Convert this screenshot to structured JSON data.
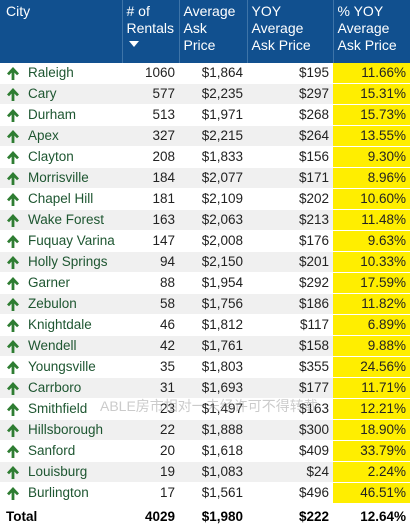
{
  "headers": {
    "city": "City",
    "rentals": "# of Rentals",
    "avg_ask": "Average Ask Price",
    "yoy_avg_ask": "YOY Average Ask Price",
    "pct_yoy": "% YOY Average Ask Price"
  },
  "rows": [
    {
      "city": "Raleigh",
      "rentals": "1060",
      "avg_ask": "$1,864",
      "yoy": "$195",
      "pct": "11.66%"
    },
    {
      "city": "Cary",
      "rentals": "577",
      "avg_ask": "$2,235",
      "yoy": "$297",
      "pct": "15.31%"
    },
    {
      "city": "Durham",
      "rentals": "513",
      "avg_ask": "$1,971",
      "yoy": "$268",
      "pct": "15.73%"
    },
    {
      "city": "Apex",
      "rentals": "327",
      "avg_ask": "$2,215",
      "yoy": "$264",
      "pct": "13.55%"
    },
    {
      "city": "Clayton",
      "rentals": "208",
      "avg_ask": "$1,833",
      "yoy": "$156",
      "pct": "9.30%"
    },
    {
      "city": "Morrisville",
      "rentals": "184",
      "avg_ask": "$2,077",
      "yoy": "$171",
      "pct": "8.96%"
    },
    {
      "city": "Chapel Hill",
      "rentals": "181",
      "avg_ask": "$2,109",
      "yoy": "$202",
      "pct": "10.60%"
    },
    {
      "city": "Wake Forest",
      "rentals": "163",
      "avg_ask": "$2,063",
      "yoy": "$213",
      "pct": "11.48%"
    },
    {
      "city": "Fuquay Varina",
      "rentals": "147",
      "avg_ask": "$2,008",
      "yoy": "$176",
      "pct": "9.63%"
    },
    {
      "city": "Holly Springs",
      "rentals": "94",
      "avg_ask": "$2,150",
      "yoy": "$201",
      "pct": "10.33%"
    },
    {
      "city": "Garner",
      "rentals": "88",
      "avg_ask": "$1,954",
      "yoy": "$292",
      "pct": "17.59%"
    },
    {
      "city": "Zebulon",
      "rentals": "58",
      "avg_ask": "$1,756",
      "yoy": "$186",
      "pct": "11.82%"
    },
    {
      "city": "Knightdale",
      "rentals": "46",
      "avg_ask": "$1,812",
      "yoy": "$117",
      "pct": "6.89%"
    },
    {
      "city": "Wendell",
      "rentals": "42",
      "avg_ask": "$1,761",
      "yoy": "$158",
      "pct": "9.88%"
    },
    {
      "city": "Youngsville",
      "rentals": "35",
      "avg_ask": "$1,803",
      "yoy": "$355",
      "pct": "24.56%"
    },
    {
      "city": "Carrboro",
      "rentals": "31",
      "avg_ask": "$1,693",
      "yoy": "$177",
      "pct": "11.71%"
    },
    {
      "city": "Smithfield",
      "rentals": "23",
      "avg_ask": "$1,497",
      "yoy": "$163",
      "pct": "12.21%"
    },
    {
      "city": "Hillsborough",
      "rentals": "22",
      "avg_ask": "$1,888",
      "yoy": "$300",
      "pct": "18.90%"
    },
    {
      "city": "Sanford",
      "rentals": "20",
      "avg_ask": "$1,618",
      "yoy": "$409",
      "pct": "33.79%"
    },
    {
      "city": "Louisburg",
      "rentals": "19",
      "avg_ask": "$1,083",
      "yoy": "$24",
      "pct": "2.24%"
    },
    {
      "city": "Burlington",
      "rentals": "17",
      "avg_ask": "$1,561",
      "yoy": "$496",
      "pct": "46.51%"
    }
  ],
  "total": {
    "label": "Total",
    "rentals": "4029",
    "avg_ask": "$1,980",
    "yoy": "$222",
    "pct": "12.64%"
  },
  "row_icon": "up-arrow-icon",
  "watermark": "ABLE房市相对一未经许可不得转载",
  "colors": {
    "header_bg": "#11508f",
    "highlight": "#ffee00",
    "arrow": "#2e7d32",
    "city_text": "#1e5631"
  },
  "sort": {
    "column": "rentals",
    "direction": "descending"
  }
}
